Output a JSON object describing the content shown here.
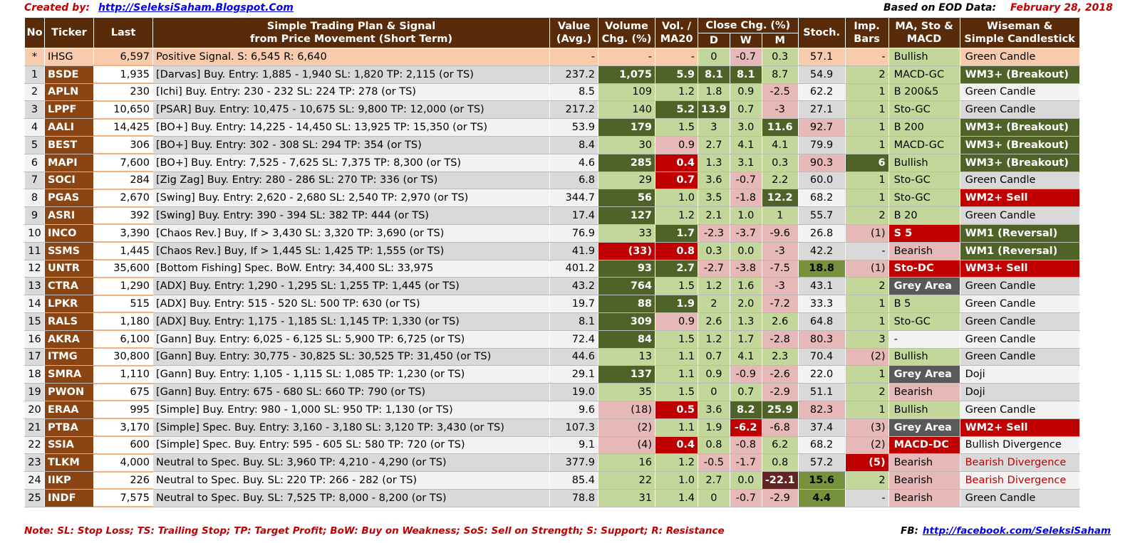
{
  "header": {
    "created_by_label": "Created by:",
    "created_by_url": "http://SeleksiSaham.Blogspot.Com",
    "eod_label": "Based on EOD Data:",
    "date": "February 28, 2018"
  },
  "columns": {
    "no": "No",
    "ticker": "Ticker",
    "last": "Last",
    "plan": "Simple Trading Plan & Signal\nfrom Price Movement (Short Term)",
    "value": "Value\n(Avg.)",
    "volume": "Volume\nChg. (%)",
    "volma": "Vol. /\nMA20",
    "close_chg": "Close Chg. (%)",
    "d": "D",
    "w": "W",
    "m": "M",
    "stoch": "Stoch.",
    "imp": "Imp.\nBars",
    "ma": "MA, Sto &\nMACD",
    "wise": "Wiseman  &\nSimple Candlestick"
  },
  "rows": [
    {
      "no": "*",
      "ticker": "IHSG",
      "last": "6,597",
      "plan": "Positive Signal.  S:  6,545  R: 6,640",
      "value": "-",
      "vol": "-",
      "volma": "-",
      "d": "0",
      "w": "-0.7",
      "m": "0.3",
      "stoch": "57.1",
      "imp": "-",
      "ma": "Bullish",
      "wise": "Green Candle"
    },
    {
      "no": "1",
      "ticker": "BSDE",
      "last": "1,935",
      "plan": "[Darvas] Buy.  Entry:  1,885 -  1,940  SL:  1,820 TP:  2,115 (or TS)",
      "value": "237.2",
      "vol": "1,075",
      "volma": "5.9",
      "d": "8.1",
      "w": "8.1",
      "m": "8.7",
      "stoch": "54.9",
      "imp": "2",
      "ma": "MACD-GC",
      "wise": "WM3+ (Breakout)"
    },
    {
      "no": "2",
      "ticker": "APLN",
      "last": "230",
      "plan": "[Ichi] Buy.  Entry:   230 -   232  SL:   224  TP:   278  (or TS)",
      "value": "8.5",
      "vol": "109",
      "volma": "1.2",
      "d": "1.8",
      "w": "0.9",
      "m": "-2.5",
      "stoch": "62.2",
      "imp": "1",
      "ma": "B 200&5",
      "wise": "Green Candle"
    },
    {
      "no": "3",
      "ticker": "LPPF",
      "last": "10,650",
      "plan": "[PSAR] Buy.  Entry: 10,475 - 10,675  SL:  9,800 TP: 12,000 (or TS)",
      "value": "217.2",
      "vol": "140",
      "volma": "5.2",
      "d": "13.9",
      "w": "0.7",
      "m": "-3",
      "stoch": "27.1",
      "imp": "1",
      "ma": "Sto-GC",
      "wise": "Green Candle"
    },
    {
      "no": "4",
      "ticker": "AALI",
      "last": "14,425",
      "plan": "[BO+] Buy.  Entry: 14,225 - 14,450  SL: 13,925 TP: 15,350 (or TS)",
      "value": "53.9",
      "vol": "179",
      "volma": "1.5",
      "d": "3",
      "w": "3.0",
      "m": "11.6",
      "stoch": "92.7",
      "imp": "1",
      "ma": "B 200",
      "wise": "WM3+ (Breakout)"
    },
    {
      "no": "5",
      "ticker": "BEST",
      "last": "306",
      "plan": "[BO+] Buy.  Entry:   302 -   308  SL:   294  TP:   354  (or TS)",
      "value": "8.4",
      "vol": "30",
      "volma": "0.9",
      "d": "2.7",
      "w": "4.1",
      "m": "4.1",
      "stoch": "79.9",
      "imp": "1",
      "ma": "MACD-GC",
      "wise": "WM3+ (Breakout)"
    },
    {
      "no": "6",
      "ticker": "MAPI",
      "last": "7,600",
      "plan": "[BO+] Buy.  Entry:  7,525 -  7,625  SL:  7,375 TP:  8,300 (or TS)",
      "value": "4.6",
      "vol": "285",
      "volma": "0.4",
      "d": "1.3",
      "w": "3.1",
      "m": "0.3",
      "stoch": "90.3",
      "imp": "6",
      "ma": "Bullish",
      "wise": "WM3+ (Breakout)"
    },
    {
      "no": "7",
      "ticker": "SOCI",
      "last": "284",
      "plan": "[Zig Zag] Buy.  Entry:   280 -   286  SL:   270  TP:   336  (or TS)",
      "value": "6.8",
      "vol": "29",
      "volma": "0.7",
      "d": "3.6",
      "w": "-0.7",
      "m": "2.2",
      "stoch": "60.0",
      "imp": "1",
      "ma": "Sto-GC",
      "wise": "Green Candle"
    },
    {
      "no": "8",
      "ticker": "PGAS",
      "last": "2,670",
      "plan": "[Swing] Buy.  Entry:  2,620 -  2,680  SL:  2,540 TP:  2,970 (or TS)",
      "value": "344.7",
      "vol": "56",
      "volma": "1.0",
      "d": "3.5",
      "w": "-1.8",
      "m": "12.2",
      "stoch": "68.2",
      "imp": "1",
      "ma": "Sto-GC",
      "wise": "WM2+ Sell"
    },
    {
      "no": "9",
      "ticker": "ASRI",
      "last": "392",
      "plan": "[Swing] Buy.  Entry:   390 -   394  SL:   382  TP:   444  (or TS)",
      "value": "17.4",
      "vol": "127",
      "volma": "1.2",
      "d": "2.1",
      "w": "1.0",
      "m": "1",
      "stoch": "55.7",
      "imp": "2",
      "ma": "B 20",
      "wise": "Green Candle"
    },
    {
      "no": "10",
      "ticker": "INCO",
      "last": "3,390",
      "plan": "[Chaos Rev.] Buy, If >  3,430  SL:  3,320 TP:  3,690 (or TS)",
      "value": "76.9",
      "vol": "33",
      "volma": "1.7",
      "d": "-2.3",
      "w": "-3.7",
      "m": "-9.6",
      "stoch": "26.8",
      "imp": "(1)",
      "ma": "S 5",
      "wise": "WM1 (Reversal)"
    },
    {
      "no": "11",
      "ticker": "SSMS",
      "last": "1,445",
      "plan": "[Chaos Rev.] Buy, If >  1,445  SL:  1,425 TP:  1,555 (or TS)",
      "value": "41.9",
      "vol": "(33)",
      "volma": "0.8",
      "d": "0.3",
      "w": "0.0",
      "m": "-3",
      "stoch": "42.2",
      "imp": "-",
      "ma": "Bearish",
      "wise": "WM1 (Reversal)"
    },
    {
      "no": "12",
      "ticker": "UNTR",
      "last": "35,600",
      "plan": "[Bottom Fishing]  Spec. BoW. Entry: 34,400  SL: 33,975",
      "value": "401.2",
      "vol": "93",
      "volma": "2.7",
      "d": "-2.7",
      "w": "-3.8",
      "m": "-7.5",
      "stoch": "18.8",
      "imp": "(1)",
      "ma": "Sto-DC",
      "wise": "WM3+ Sell"
    },
    {
      "no": "13",
      "ticker": "CTRA",
      "last": "1,290",
      "plan": "[ADX] Buy.  Entry:  1,290 -  1,295  SL:  1,255 TP:  1,445 (or TS)",
      "value": "43.2",
      "vol": "764",
      "volma": "1.5",
      "d": "1.2",
      "w": "1.6",
      "m": "-3",
      "stoch": "43.1",
      "imp": "2",
      "ma": "Grey Area",
      "wise": "Green Candle"
    },
    {
      "no": "14",
      "ticker": "LPKR",
      "last": "515",
      "plan": "[ADX] Buy.  Entry:   515 -   520  SL:   500  TP:   630  (or TS)",
      "value": "19.7",
      "vol": "88",
      "volma": "1.9",
      "d": "2",
      "w": "2.0",
      "m": "-7.2",
      "stoch": "33.3",
      "imp": "1",
      "ma": "B 5",
      "wise": "Green Candle"
    },
    {
      "no": "15",
      "ticker": "RALS",
      "last": "1,180",
      "plan": "[ADX] Buy.  Entry:  1,175 -  1,185  SL:  1,145 TP:  1,330 (or TS)",
      "value": "8.1",
      "vol": "309",
      "volma": "0.9",
      "d": "2.6",
      "w": "1.3",
      "m": "2.6",
      "stoch": "64.8",
      "imp": "1",
      "ma": "Sto-GC",
      "wise": "Green Candle"
    },
    {
      "no": "16",
      "ticker": "AKRA",
      "last": "6,100",
      "plan": "[Gann] Buy.  Entry:  6,025 -  6,125  SL:  5,900 TP:  6,725 (or TS)",
      "value": "72.4",
      "vol": "84",
      "volma": "1.5",
      "d": "1.2",
      "w": "1.7",
      "m": "-2.8",
      "stoch": "80.3",
      "imp": "3",
      "ma": "-",
      "wise": "Green Candle"
    },
    {
      "no": "17",
      "ticker": "ITMG",
      "last": "30,800",
      "plan": "[Gann] Buy.  Entry: 30,775 - 30,825  SL: 30,525 TP: 31,450 (or TS)",
      "value": "44.6",
      "vol": "13",
      "volma": "1.1",
      "d": "0.7",
      "w": "4.1",
      "m": "2.3",
      "stoch": "70.4",
      "imp": "(2)",
      "ma": "Bullish",
      "wise": "Green Candle"
    },
    {
      "no": "18",
      "ticker": "SMRA",
      "last": "1,110",
      "plan": "[Gann] Buy.  Entry:  1,105 -  1,115  SL:  1,085 TP:  1,230 (or TS)",
      "value": "29.1",
      "vol": "137",
      "volma": "1.1",
      "d": "0.9",
      "w": "-0.9",
      "m": "-2.6",
      "stoch": "22.0",
      "imp": "1",
      "ma": "Grey Area",
      "wise": "Doji"
    },
    {
      "no": "19",
      "ticker": "PWON",
      "last": "675",
      "plan": "[Gann] Buy.  Entry:   675 -   680  SL:   660  TP:   790  (or TS)",
      "value": "19.0",
      "vol": "35",
      "volma": "1.5",
      "d": "0",
      "w": "0.7",
      "m": "-2.9",
      "stoch": "51.1",
      "imp": "2",
      "ma": "Bearish",
      "wise": "Doji"
    },
    {
      "no": "20",
      "ticker": "ERAA",
      "last": "995",
      "plan": "[Simple] Buy.  Entry:   980 -  1,000  SL:   950  TP:  1,130 (or TS)",
      "value": "9.6",
      "vol": "(18)",
      "volma": "0.5",
      "d": "3.6",
      "w": "8.2",
      "m": "25.9",
      "stoch": "82.3",
      "imp": "1",
      "ma": "Bullish",
      "wise": "Green Candle"
    },
    {
      "no": "21",
      "ticker": "PTBA",
      "last": "3,170",
      "plan": "[Simple] Spec. Buy. Entry:  3,160 -  3,180  SL:  3,120 TP:  3,430 (or TS)",
      "value": "107.3",
      "vol": "(2)",
      "volma": "1.1",
      "d": "1.9",
      "w": "-6.2",
      "m": "-6.8",
      "stoch": "37.4",
      "imp": "(3)",
      "ma": "Grey Area",
      "wise": "WM2+ Sell"
    },
    {
      "no": "22",
      "ticker": "SSIA",
      "last": "600",
      "plan": "[Simple] Spec. Buy. Entry:   595 -   605  SL:   580  TP:   720  (or TS)",
      "value": "9.1",
      "vol": "(4)",
      "volma": "0.4",
      "d": "0.8",
      "w": "-0.8",
      "m": "6.2",
      "stoch": "68.2",
      "imp": "(2)",
      "ma": "MACD-DC",
      "wise": "Bullish Divergence"
    },
    {
      "no": "23",
      "ticker": "TLKM",
      "last": "4,000",
      "plan": "Neutral to Spec. Buy.  SL:  3,960 TP:  4,210 -  4,290 (or TS)",
      "value": "377.9",
      "vol": "16",
      "volma": "1.2",
      "d": "-0.5",
      "w": "-1.7",
      "m": "0.8",
      "stoch": "57.2",
      "imp": "(5)",
      "ma": "Bearish",
      "wise": "Bearish Divergence"
    },
    {
      "no": "24",
      "ticker": "IIKP",
      "last": "226",
      "plan": "Neutral to Spec. Buy.  SL:   220  TP:   266 -   282  (or TS)",
      "value": "85.4",
      "vol": "22",
      "volma": "1.0",
      "d": "2.7",
      "w": "0.0",
      "m": "-22.1",
      "stoch": "15.6",
      "imp": "2",
      "ma": "Bearish",
      "wise": "Bearish Divergence"
    },
    {
      "no": "25",
      "ticker": "INDF",
      "last": "7,575",
      "plan": "Neutral to Spec. Buy.  SL:  7,525 TP:  8,000 -  8,200 (or TS)",
      "value": "78.8",
      "vol": "31",
      "volma": "1.4",
      "d": "0",
      "w": "-0.7",
      "m": "-2.9",
      "stoch": "4.4",
      "imp": "-",
      "ma": "Bearish",
      "wise": "Green Candle"
    }
  ],
  "styles": {
    "row_bg": [
      "#f8cbad",
      "#d9d9d9",
      "#f2f2f2",
      "#d9d9d9",
      "#f2f2f2",
      "#d9d9d9",
      "#f2f2f2",
      "#d9d9d9",
      "#f2f2f2",
      "#d9d9d9",
      "#f2f2f2",
      "#d9d9d9",
      "#f2f2f2",
      "#d9d9d9",
      "#f2f2f2",
      "#d9d9d9",
      "#f2f2f2",
      "#d9d9d9",
      "#f2f2f2",
      "#d9d9d9",
      "#f2f2f2",
      "#d9d9d9",
      "#f2f2f2",
      "#d9d9d9",
      "#f2f2f2",
      "#d9d9d9"
    ],
    "vol": [
      "",
      "dg",
      "lg",
      "lg",
      "dg",
      "lg",
      "dg",
      "lg",
      "dg",
      "dg",
      "lg",
      "rd",
      "dg",
      "dg",
      "dg",
      "dg",
      "dg",
      "lg",
      "dg",
      "lg",
      "pk",
      "pk",
      "pk",
      "lg",
      "lg",
      "lg"
    ],
    "volma": [
      "",
      "dg",
      "lg",
      "dg",
      "lg",
      "pk",
      "rd",
      "rd",
      "lg",
      "lg",
      "dg",
      "rd",
      "dg",
      "lg",
      "dg",
      "pk",
      "lg",
      "lg",
      "lg",
      "lg",
      "rd",
      "lg",
      "rd",
      "lg",
      "lg",
      "lg"
    ],
    "d": [
      "lg",
      "dg",
      "lg",
      "dg",
      "lg",
      "lg",
      "lg",
      "lg",
      "lg",
      "lg",
      "pk",
      "lg",
      "pk",
      "lg",
      "lg",
      "lg",
      "lg",
      "lg",
      "lg",
      "lg",
      "lg",
      "lg",
      "lg",
      "pk",
      "lg",
      "lg"
    ],
    "w": [
      "pk",
      "dg",
      "lg",
      "lg",
      "lg",
      "lg",
      "lg",
      "pk",
      "pk",
      "lg",
      "pk",
      "lg",
      "pk",
      "lg",
      "lg",
      "lg",
      "lg",
      "lg",
      "pk",
      "lg",
      "dg",
      "rd",
      "pk",
      "pk",
      "lg",
      "pk"
    ],
    "m": [
      "lg",
      "lg",
      "pk",
      "pk",
      "dg",
      "lg",
      "lg",
      "lg",
      "dg",
      "lg",
      "pk",
      "pk",
      "pk",
      "pk",
      "pk",
      "lg",
      "pk",
      "lg",
      "pk",
      "pk",
      "dg",
      "pk",
      "lg",
      "lg",
      "dr",
      "pk"
    ],
    "stoch": [
      "",
      "",
      "",
      "",
      "pk",
      "",
      "pk",
      "",
      "",
      "",
      "",
      "",
      "dg",
      "",
      "",
      "",
      "pk",
      "",
      "",
      "",
      "pk",
      "",
      "",
      "",
      "dg",
      "dg"
    ],
    "imp": [
      "",
      "lg",
      "lg",
      "lg",
      "lg",
      "lg",
      "dg",
      "lg",
      "lg",
      "lg",
      "pk",
      "",
      "pk",
      "lg",
      "lg",
      "lg",
      "lg",
      "pk",
      "lg",
      "lg",
      "lg",
      "pk",
      "pk",
      "rd",
      "lg",
      ""
    ],
    "ma": [
      "lg",
      "lg",
      "lg",
      "lg",
      "lg",
      "lg",
      "lg",
      "lg",
      "lg",
      "lg",
      "rd",
      "pk",
      "rd",
      "gy",
      "lg",
      "lg",
      "",
      "lg",
      "gy",
      "pk",
      "lg",
      "gy",
      "rd",
      "pk",
      "pk",
      "pk"
    ],
    "wise": [
      "",
      "dg",
      "",
      "",
      "dg",
      "dg",
      "dg",
      "",
      "rd",
      "",
      "dg",
      "dg",
      "rd",
      "",
      "",
      "",
      "",
      "",
      "",
      "",
      "",
      "rd",
      "",
      "rtxt",
      "rtxt",
      ""
    ],
    "palette": {
      "dg": "#4f6228",
      "lg": "#c4d79b",
      "pk": "#e6b8b7",
      "rd": "#c00000",
      "gy": "#595959",
      "dr": "#632523"
    }
  },
  "footer": {
    "note": "Note:  SL: Stop Loss; TS: Trailing Stop; TP: Target Profit; BoW: Buy on Weakness; SoS: Sell on Strength; S: Support; R: Resistance",
    "fb_label": "FB:",
    "fb_url": "http://facebook.com/SeleksiSaham"
  }
}
